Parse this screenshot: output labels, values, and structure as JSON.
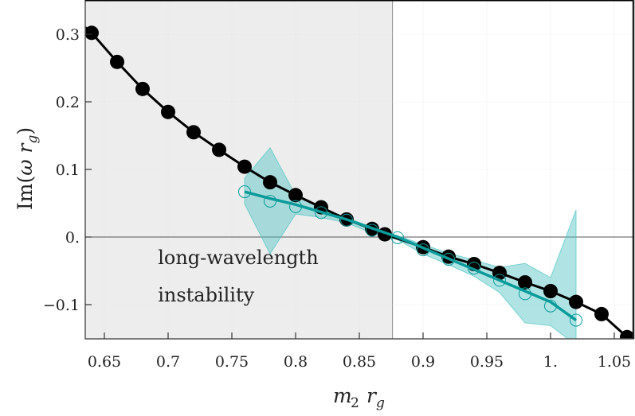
{
  "chart_data": {
    "type": "line",
    "title": "",
    "xlabel": "m_2 r_g",
    "ylabel": "Im(ω r_g)",
    "xlim": [
      0.635,
      1.065
    ],
    "ylim": [
      -0.149,
      0.35
    ],
    "grid": true,
    "legend": null,
    "x_ticks": [
      0.65,
      0.7,
      0.75,
      0.8,
      0.85,
      0.9,
      0.95,
      1.0,
      1.05
    ],
    "x_tick_labels": [
      "0.65",
      "0.7",
      "0.75",
      "0.8",
      "0.85",
      "0.9",
      "0.95",
      "1.",
      "1.05"
    ],
    "y_ticks": [
      0.3,
      0.2,
      0.1,
      0.0,
      -0.1
    ],
    "y_tick_labels": [
      "0.3",
      "0.2",
      "0.1",
      "0.",
      "−0.1"
    ],
    "shaded_region": {
      "x_from": 0.635,
      "x_to": 0.876,
      "color": "#ededed",
      "label": "long-wavelength instability"
    },
    "zero_line": 0.0,
    "annotation": {
      "lines": [
        "long-wavelength",
        "instability"
      ],
      "x": 0.692,
      "y_lines": [
        -0.04,
        -0.095
      ]
    },
    "series": [
      {
        "name": "numerical (filled markers)",
        "color": "#000000",
        "marker": "filled-circle",
        "x": [
          0.63,
          0.64,
          0.66,
          0.68,
          0.7,
          0.72,
          0.74,
          0.76,
          0.78,
          0.8,
          0.82,
          0.84,
          0.86,
          0.87,
          0.9,
          0.92,
          0.94,
          0.96,
          0.98,
          1.0,
          1.02,
          1.04,
          1.06,
          1.07
        ],
        "values": [
          0.318,
          0.302,
          0.259,
          0.219,
          0.185,
          0.155,
          0.129,
          0.104,
          0.081,
          0.062,
          0.044,
          0.026,
          0.012,
          0.004,
          -0.015,
          -0.029,
          -0.04,
          -0.053,
          -0.067,
          -0.08,
          -0.096,
          -0.114,
          -0.148,
          -0.165
        ],
        "marker_mask": [
          false,
          true,
          true,
          true,
          true,
          true,
          true,
          true,
          true,
          true,
          true,
          true,
          true,
          true,
          true,
          true,
          true,
          true,
          true,
          true,
          true,
          true,
          true,
          false
        ]
      },
      {
        "name": "fit (open markers)",
        "color": "#0a9a9a",
        "marker": "open-circle",
        "x": [
          0.76,
          0.78,
          0.8,
          0.82,
          0.84,
          0.86,
          0.88,
          0.9,
          0.92,
          0.94,
          0.96,
          0.98,
          1.0,
          1.02
        ],
        "values": [
          0.067,
          0.053,
          0.045,
          0.036,
          0.025,
          0.01,
          -0.001,
          -0.019,
          -0.033,
          -0.046,
          -0.064,
          -0.084,
          -0.102,
          -0.123
        ],
        "line_x": [
          0.76,
          0.78,
          0.8,
          0.82,
          0.84,
          0.86,
          0.88,
          0.9,
          0.92,
          0.94,
          0.96,
          0.98,
          1.0,
          1.02
        ],
        "line_values": [
          0.067,
          0.057,
          0.048,
          0.037,
          0.026,
          0.013,
          0.0,
          -0.016,
          -0.032,
          -0.048,
          -0.064,
          -0.08,
          -0.096,
          -0.123
        ]
      }
    ],
    "error_band": {
      "color": "#4fc4c4",
      "opacity": 0.45,
      "x": [
        0.76,
        0.78,
        0.8,
        0.82,
        0.84,
        0.86,
        0.88,
        0.9,
        0.92,
        0.94,
        0.96,
        0.98,
        1.0,
        1.02
      ],
      "upper": [
        0.087,
        0.132,
        0.062,
        0.043,
        0.029,
        0.014,
        0.002,
        -0.011,
        -0.024,
        -0.034,
        -0.045,
        -0.039,
        -0.06,
        0.04
      ],
      "lower": [
        0.049,
        -0.025,
        0.034,
        0.029,
        0.021,
        0.006,
        -0.004,
        -0.025,
        -0.041,
        -0.058,
        -0.082,
        -0.127,
        -0.131,
        -0.16
      ]
    }
  }
}
